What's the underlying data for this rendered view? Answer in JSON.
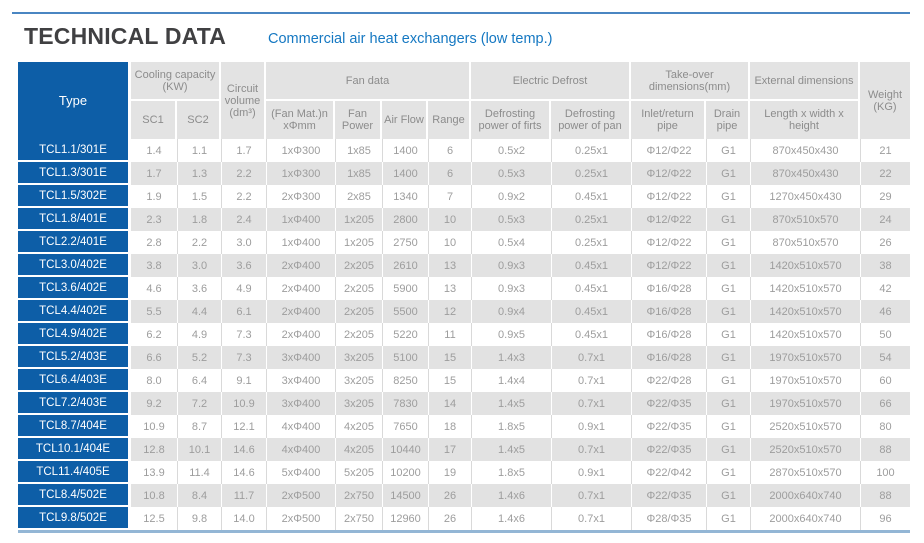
{
  "page": {
    "title": "TECHNICAL DATA",
    "subtitle": "Commercial air heat exchangers (low temp.)"
  },
  "colors": {
    "brand_blue": "#0d5ea7",
    "subtitle_blue": "#1578c2",
    "top_rule": "#4a86c2",
    "bottom_rule": "#93b6d5",
    "header_bg": "#e3e3e3",
    "header_text": "#8c8c8c",
    "row_alt_bg": "#e2e2e2",
    "cell_text": "#9d9d9d",
    "title_text": "#404042"
  },
  "table": {
    "groups": {
      "type": "Type",
      "cooling": "Cooling capacity (KW)",
      "circuit": "Circuit volume (dm³)",
      "fan": "Fan data",
      "defrost": "Electric Defrost",
      "takeover": "Take-over dimensions(mm)",
      "external": "External dimensions",
      "weight": "Weight (KG)"
    },
    "subheaders": {
      "sc1": "SC1",
      "sc2": "SC2",
      "fan_mat": "(Fan Mat.)n xΦmm",
      "fan_power": "Fan Power",
      "air_flow": "Air Flow",
      "range": "Range",
      "defrost_firts": "Defrosting power of firts",
      "defrost_pan": "Defrosting power of pan",
      "inlet": "Inlet/return pipe",
      "drain": "Drain pipe",
      "lwh": "Length x width x height"
    },
    "rows": [
      [
        "TCL1.1/301E",
        "1.4",
        "1.1",
        "1.7",
        "1xΦ300",
        "1x85",
        "1400",
        "6",
        "0.5x2",
        "0.25x1",
        "Φ12/Φ22",
        "G1",
        "870x450x430",
        "21"
      ],
      [
        "TCL1.3/301E",
        "1.7",
        "1.3",
        "2.2",
        "1xΦ300",
        "1x85",
        "1400",
        "6",
        "0.5x3",
        "0.25x1",
        "Φ12/Φ22",
        "G1",
        "870x450x430",
        "22"
      ],
      [
        "TCL1.5/302E",
        "1.9",
        "1.5",
        "2.2",
        "2xΦ300",
        "2x85",
        "1340",
        "7",
        "0.9x2",
        "0.45x1",
        "Φ12/Φ22",
        "G1",
        "1270x450x430",
        "29"
      ],
      [
        "TCL1.8/401E",
        "2.3",
        "1.8",
        "2.4",
        "1xΦ400",
        "1x205",
        "2800",
        "10",
        "0.5x3",
        "0.25x1",
        "Φ12/Φ22",
        "G1",
        "870x510x570",
        "24"
      ],
      [
        "TCL2.2/401E",
        "2.8",
        "2.2",
        "3.0",
        "1xΦ400",
        "1x205",
        "2750",
        "10",
        "0.5x4",
        "0.25x1",
        "Φ12/Φ22",
        "G1",
        "870x510x570",
        "26"
      ],
      [
        "TCL3.0/402E",
        "3.8",
        "3.0",
        "3.6",
        "2xΦ400",
        "2x205",
        "2610",
        "13",
        "0.9x3",
        "0.45x1",
        "Φ12/Φ22",
        "G1",
        "1420x510x570",
        "38"
      ],
      [
        "TCL3.6/402E",
        "4.6",
        "3.6",
        "4.9",
        "2xΦ400",
        "2x205",
        "5900",
        "13",
        "0.9x3",
        "0.45x1",
        "Φ16/Φ28",
        "G1",
        "1420x510x570",
        "42"
      ],
      [
        "TCL4.4/402E",
        "5.5",
        "4.4",
        "6.1",
        "2xΦ400",
        "2x205",
        "5500",
        "12",
        "0.9x4",
        "0.45x1",
        "Φ16/Φ28",
        "G1",
        "1420x510x570",
        "46"
      ],
      [
        "TCL4.9/402E",
        "6.2",
        "4.9",
        "7.3",
        "2xΦ400",
        "2x205",
        "5220",
        "11",
        "0.9x5",
        "0.45x1",
        "Φ16/Φ28",
        "G1",
        "1420x510x570",
        "50"
      ],
      [
        "TCL5.2/403E",
        "6.6",
        "5.2",
        "7.3",
        "3xΦ400",
        "3x205",
        "5100",
        "15",
        "1.4x3",
        "0.7x1",
        "Φ16/Φ28",
        "G1",
        "1970x510x570",
        "54"
      ],
      [
        "TCL6.4/403E",
        "8.0",
        "6.4",
        "9.1",
        "3xΦ400",
        "3x205",
        "8250",
        "15",
        "1.4x4",
        "0.7x1",
        "Φ22/Φ28",
        "G1",
        "1970x510x570",
        "60"
      ],
      [
        "TCL7.2/403E",
        "9.2",
        "7.2",
        "10.9",
        "3xΦ400",
        "3x205",
        "7830",
        "14",
        "1.4x5",
        "0.7x1",
        "Φ22/Φ35",
        "G1",
        "1970x510x570",
        "66"
      ],
      [
        "TCL8.7/404E",
        "10.9",
        "8.7",
        "12.1",
        "4xΦ400",
        "4x205",
        "7650",
        "18",
        "1.8x5",
        "0.9x1",
        "Φ22/Φ35",
        "G1",
        "2520x510x570",
        "80"
      ],
      [
        "TCL10.1/404E",
        "12.8",
        "10.1",
        "14.6",
        "4xΦ400",
        "4x205",
        "10440",
        "17",
        "1.4x5",
        "0.7x1",
        "Φ22/Φ35",
        "G1",
        "2520x510x570",
        "88"
      ],
      [
        "TCL11.4/405E",
        "13.9",
        "11.4",
        "14.6",
        "5xΦ400",
        "5x205",
        "10200",
        "19",
        "1.8x5",
        "0.9x1",
        "Φ22/Φ42",
        "G1",
        "2870x510x570",
        "100"
      ],
      [
        "TCL8.4/502E",
        "10.8",
        "8.4",
        "11.7",
        "2xΦ500",
        "2x750",
        "14500",
        "26",
        "1.4x6",
        "0.7x1",
        "Φ22/Φ35",
        "G1",
        "2000x640x740",
        "88"
      ],
      [
        "TCL9.8/502E",
        "12.5",
        "9.8",
        "14.0",
        "2xΦ500",
        "2x750",
        "12960",
        "26",
        "1.4x6",
        "0.7x1",
        "Φ28/Φ35",
        "G1",
        "2000x640x740",
        "96"
      ]
    ]
  }
}
